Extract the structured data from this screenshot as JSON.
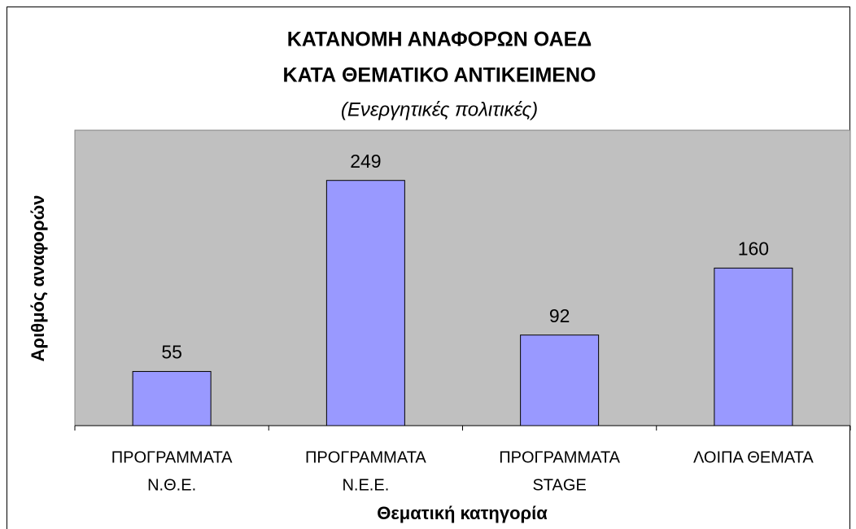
{
  "chart_data": {
    "type": "bar",
    "title": [
      "ΚΑΤΑΝΟΜΗ ΑΝΑΦΟΡΩΝ ΟΑΕΔ",
      "ΚΑΤΑ ΘΕΜΑΤΙΚΟ ΑΝΤΙΚΕΙΜΕΝΟ"
    ],
    "subtitle": "(Ενεργητικές πολιτικές)",
    "x_label": "Θεματική κατηγορία",
    "y_label": "Αριθμός αναφορών",
    "categories": [
      [
        "ΠΡΟΓΡΑΜΜΑΤΑ",
        "Ν.Θ.Ε."
      ],
      [
        "ΠΡΟΓΡΑΜΜΑΤΑ",
        "Ν.Ε.Ε."
      ],
      [
        "ΠΡΟΓΡΑΜΜΑΤΑ",
        "STAGE"
      ],
      [
        "ΛΟΙΠΑ ΘΕΜΑΤΑ"
      ]
    ],
    "values": [
      55,
      249,
      92,
      160
    ],
    "color": "#9999ff",
    "ylim": [
      0,
      300
    ]
  }
}
